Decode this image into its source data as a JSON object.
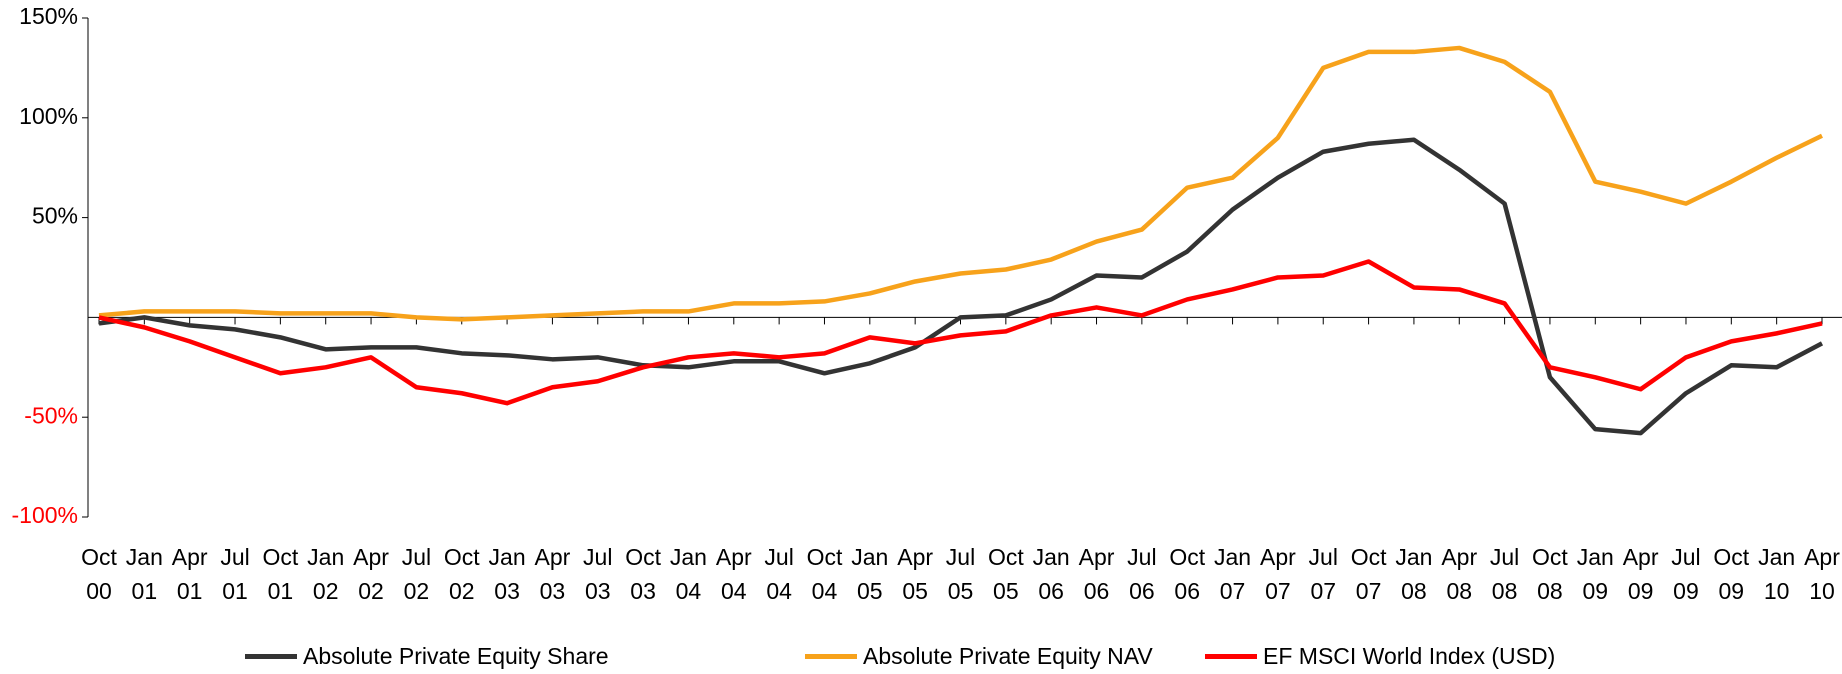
{
  "chart_data": {
    "type": "line",
    "categories": [
      "Oct 00",
      "Jan 01",
      "Apr 01",
      "Jul 01",
      "Oct 01",
      "Jan 02",
      "Apr 02",
      "Jul 02",
      "Oct 02",
      "Jan 03",
      "Apr 03",
      "Jul 03",
      "Oct 03",
      "Jan 04",
      "Apr 04",
      "Jul 04",
      "Oct 04",
      "Jan 05",
      "Apr 05",
      "Jul 05",
      "Oct 05",
      "Jan 06",
      "Apr 06",
      "Jul 06",
      "Oct 06",
      "Jan 07",
      "Apr 07",
      "Jul 07",
      "Oct 07",
      "Jan 08",
      "Apr 08",
      "Jul 08",
      "Oct 08",
      "Jan 09",
      "Apr 09",
      "Jul 09",
      "Oct 09",
      "Jan 10",
      "Apr 10"
    ],
    "series": [
      {
        "name": "Absolute Private Equity Share",
        "color": "#333333",
        "values": [
          -3,
          0,
          -4,
          -6,
          -10,
          -16,
          -15,
          -15,
          -18,
          -19,
          -21,
          -20,
          -24,
          -25,
          -22,
          -22,
          -28,
          -23,
          -15,
          0,
          1,
          9,
          21,
          20,
          33,
          54,
          70,
          83,
          87,
          89,
          74,
          57,
          -30,
          -56,
          -58,
          -38,
          -24,
          -25,
          -13
        ]
      },
      {
        "name": "Absolute Private Equity  NAV",
        "color": "#f7a21b",
        "values": [
          1,
          3,
          3,
          3,
          2,
          2,
          2,
          0,
          -1,
          0,
          1,
          2,
          3,
          3,
          7,
          7,
          8,
          12,
          18,
          22,
          24,
          29,
          38,
          44,
          65,
          70,
          90,
          125,
          133,
          133,
          135,
          128,
          113,
          68,
          63,
          57,
          68,
          80,
          91
        ]
      },
      {
        "name": "EF MSCI World Index (USD)",
        "color": "#ff0000",
        "values": [
          0,
          -5,
          -12,
          -20,
          -28,
          -25,
          -20,
          -35,
          -38,
          -43,
          -35,
          -32,
          -25,
          -20,
          -18,
          -20,
          -18,
          -10,
          -13,
          -9,
          -7,
          1,
          5,
          1,
          9,
          14,
          20,
          21,
          28,
          15,
          14,
          7,
          -25,
          -30,
          -36,
          -20,
          -12,
          -8,
          -3
        ]
      }
    ],
    "ylim": [
      -100,
      150
    ],
    "yticks": [
      {
        "value": -100,
        "label": "-100%"
      },
      {
        "value": -50,
        "label": "-50%"
      },
      {
        "value": 50,
        "label": "50%"
      },
      {
        "value": 100,
        "label": "100%"
      },
      {
        "value": 150,
        "label": "150%"
      }
    ],
    "negative_tick_color": "#ff0000",
    "legend": "bottom"
  }
}
